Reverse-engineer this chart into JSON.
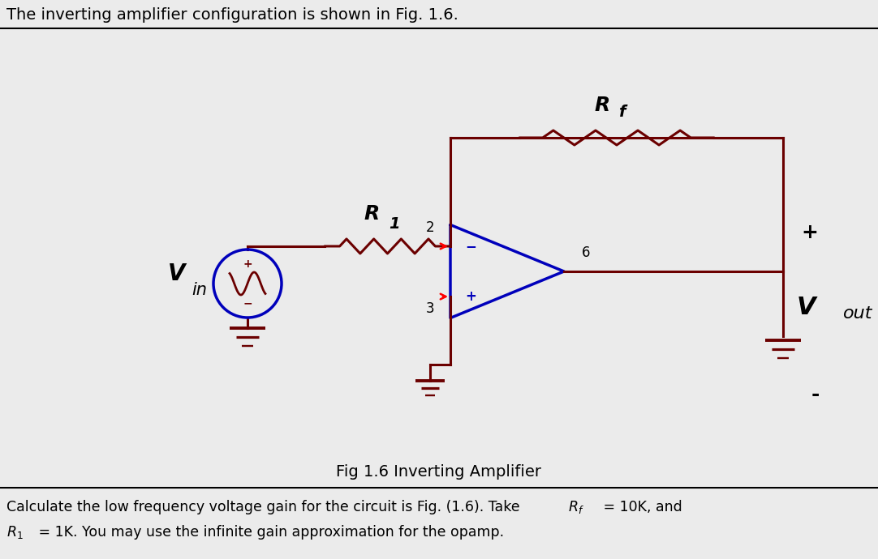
{
  "bg_color": "#ebebeb",
  "wire_color": "#6B0000",
  "opamp_color": "#0000BB",
  "title_text": "The inverting amplifier configuration is shown in Fig. 1.6.",
  "caption": "Fig 1.6 Inverting Amplifier",
  "Rf_label": "R",
  "Rf_sub": "f",
  "R1_label": "R",
  "R1_sub": "1",
  "Vin_label": "V",
  "Vin_sub": "in",
  "Vout_label": "V",
  "Vout_sub": "out",
  "node2_label": "2",
  "node3_label": "3",
  "node6_label": "6",
  "vout_plus": "+",
  "vout_minus": "-",
  "bottom_line1_pre": "Calculate the low frequency voltage gain for the circuit is Fig. (1.6). Take  ",
  "bottom_line1_rf": "R",
  "bottom_line1_rfsub": "f",
  "bottom_line1_post": " = 10K, and",
  "bottom_line2_r1": "R",
  "bottom_line2_r1sub": "1",
  "bottom_line2_post": " = 1K. You may use the infinite gain approximation for the opamp."
}
